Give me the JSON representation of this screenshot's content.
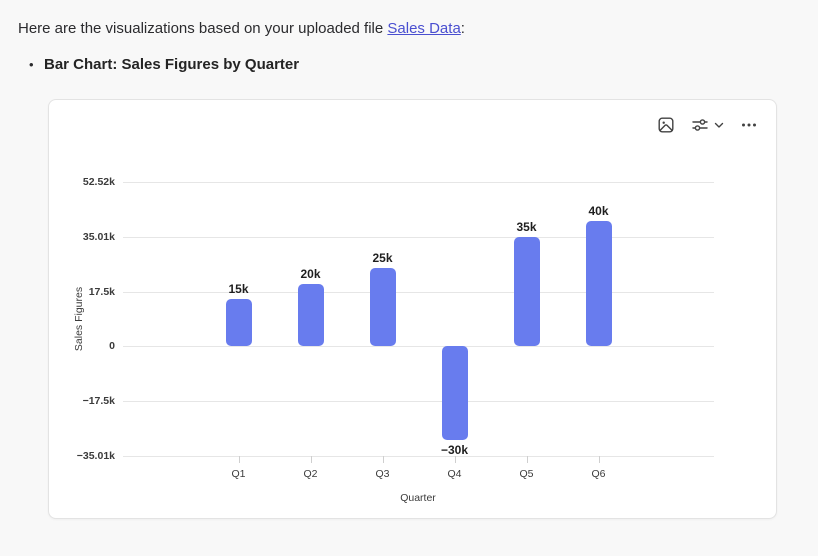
{
  "message": {
    "before_link": "Here are the visualizations based on your uploaded file ",
    "link_text": "Sales Data",
    "after_link": ":",
    "bullet_marker": "•",
    "bullet_label": "Bar Chart: Sales Figures by Quarter"
  },
  "toolbar": {
    "buttons": [
      {
        "name": "export-image",
        "icon": "image-icon"
      },
      {
        "name": "chart-options",
        "icon": "sliders-icon",
        "secondary_icon": "chevron-down-icon"
      },
      {
        "name": "more-options",
        "icon": "more-horizontal-icon"
      }
    ]
  },
  "colors": {
    "bar": "#687cee",
    "link": "#4a4fd0",
    "gridline": "#e6e6e6",
    "tick": "#cfcfcf",
    "page_background": "#f8f8f8",
    "card_background": "#ffffff"
  },
  "chart_data": {
    "type": "bar",
    "title": "",
    "categories": [
      "Q1",
      "Q2",
      "Q3",
      "Q4",
      "Q5",
      "Q6"
    ],
    "values": [
      15000,
      20000,
      25000,
      -30000,
      35000,
      40000
    ],
    "value_labels": [
      "15k",
      "20k",
      "25k",
      "−30k",
      "35k",
      "40k"
    ],
    "xlabel": "Quarter",
    "ylabel": "Sales Figures",
    "y_ticks": [
      {
        "label": "52.52k",
        "value": 52515
      },
      {
        "label": "35.01k",
        "value": 35010
      },
      {
        "label": "17.5k",
        "value": 17505
      },
      {
        "label": "0",
        "value": 0
      },
      {
        "label": "−17.5k",
        "value": -17505
      },
      {
        "label": "−35.01k",
        "value": -35010
      }
    ],
    "ylim": [
      -35010,
      52515
    ],
    "grid": true,
    "legend": false,
    "bar_color": "#687cee"
  }
}
